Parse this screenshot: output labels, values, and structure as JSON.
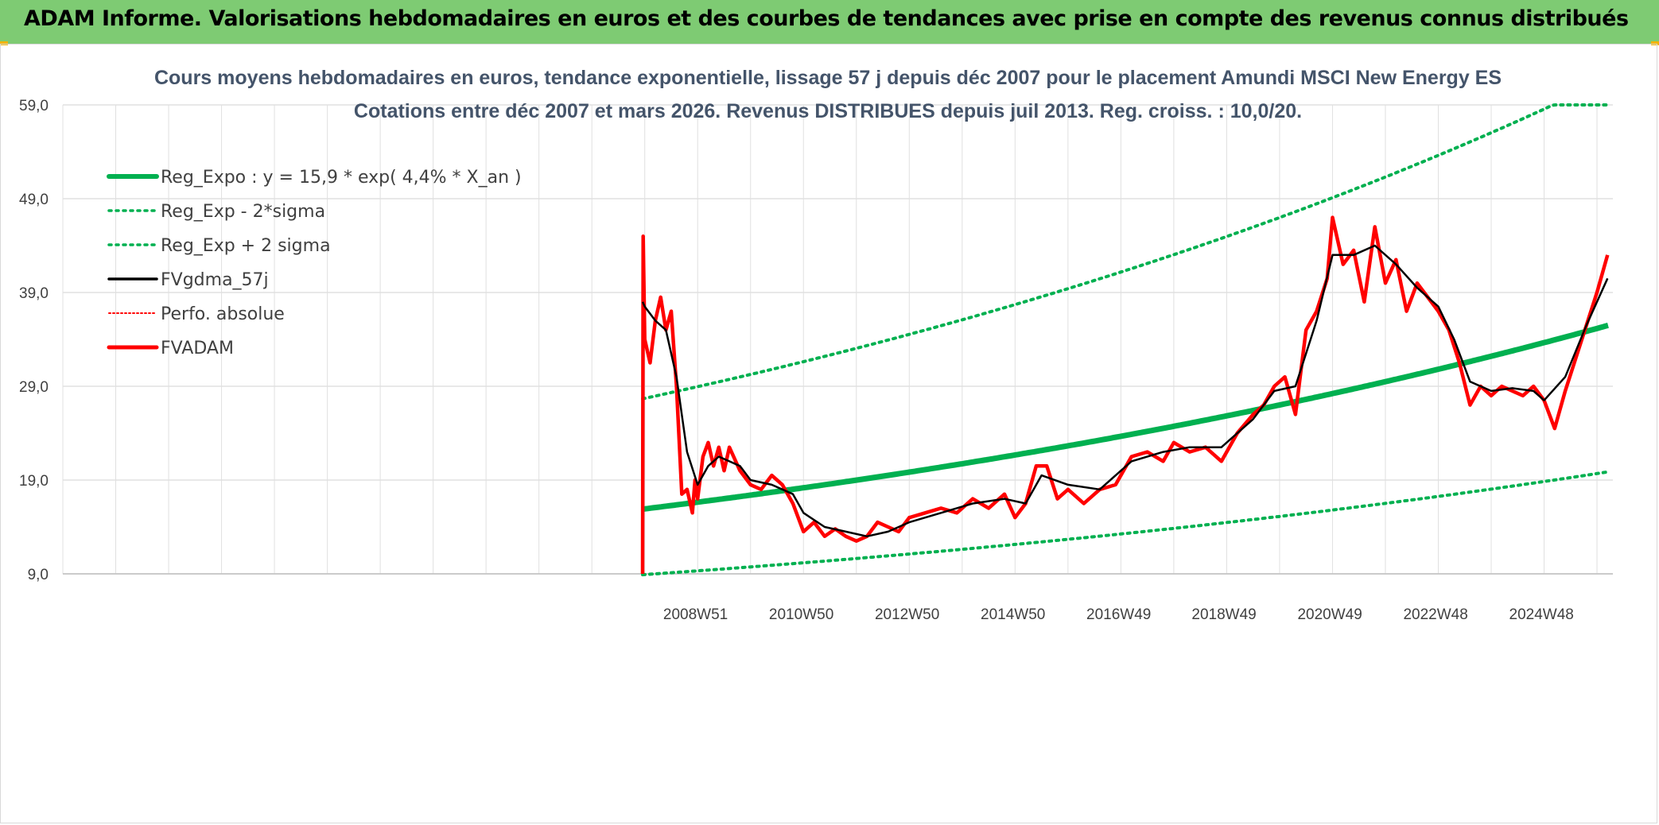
{
  "header": {
    "title": "ADAM Informe. Valorisations hebdomadaires en euros et des courbes de tendances avec prise en compte des revenus connus distribués"
  },
  "colors": {
    "banner": "#7ecb73",
    "reg_expo": "#00b050",
    "fvgdma": "#000000",
    "fvadam": "#ff0000",
    "grid": "#e0e0e0"
  },
  "chart_data": {
    "type": "line",
    "title": "Cours moyens hebdomadaires en euros, tendance exponentielle, lissage 57 j depuis déc 2007 pour le placement Amundi MSCI New Energy ES",
    "subtitle": "Cotations entre déc 2007 et mars 2026. Revenus DISTRIBUES depuis juil 2013. Reg. croiss. : 10,0/20.",
    "ylim": [
      9.0,
      59.0
    ],
    "y_ticks": [
      "59,0",
      "49,0",
      "39,0",
      "29,0",
      "19,0",
      "9,0"
    ],
    "x_ticks": [
      "2008W51",
      "2010W50",
      "2012W50",
      "2014W50",
      "2016W49",
      "2018W49",
      "2020W49",
      "2022W48",
      "2024W48"
    ],
    "x_tick_years": [
      2008.96,
      2010.96,
      2012.96,
      2014.96,
      2016.96,
      2018.95,
      2020.95,
      2022.95,
      2024.95
    ],
    "x_range": [
      1997.0,
      2026.3
    ],
    "legend": [
      "Reg_Expo : y = 15,9 * exp( 4,4% *  X_an )",
      "Reg_Exp - 2*sigma",
      "Reg_Exp + 2 sigma",
      "FVgdma_57j",
      "Perfo. absolue",
      "FVADAM"
    ],
    "legend_position": "top-left",
    "series": [
      {
        "name": "FVADAM",
        "x": [
          2007.96,
          2007.97,
          2008.0,
          2008.1,
          2008.2,
          2008.3,
          2008.4,
          2008.5,
          2008.6,
          2008.7,
          2008.8,
          2008.9,
          2008.95,
          2009.0,
          2009.1,
          2009.2,
          2009.3,
          2009.4,
          2009.5,
          2009.6,
          2009.8,
          2010.0,
          2010.2,
          2010.4,
          2010.6,
          2010.8,
          2011.0,
          2011.2,
          2011.4,
          2011.6,
          2011.8,
          2012.0,
          2012.2,
          2012.4,
          2012.6,
          2012.8,
          2013.0,
          2013.3,
          2013.6,
          2013.9,
          2014.2,
          2014.5,
          2014.8,
          2015.0,
          2015.2,
          2015.4,
          2015.6,
          2015.8,
          2016.0,
          2016.3,
          2016.6,
          2016.9,
          2017.2,
          2017.5,
          2017.8,
          2018.0,
          2018.3,
          2018.6,
          2018.9,
          2019.2,
          2019.5,
          2019.7,
          2019.9,
          2020.1,
          2020.3,
          2020.5,
          2020.7,
          2020.9,
          2021.0,
          2021.2,
          2021.4,
          2021.6,
          2021.8,
          2022.0,
          2022.2,
          2022.4,
          2022.6,
          2022.8,
          2023.0,
          2023.2,
          2023.4,
          2023.6,
          2023.8,
          2024.0,
          2024.2,
          2024.4,
          2024.6,
          2024.8,
          2025.0,
          2025.2,
          2025.4,
          2025.6,
          2025.8,
          2026.0,
          2026.2
        ],
        "values": [
          9.0,
          45.0,
          34.0,
          31.5,
          36.0,
          38.5,
          35.0,
          37.0,
          29.0,
          17.5,
          18.0,
          15.5,
          19.0,
          17.0,
          21.5,
          23.0,
          20.5,
          22.5,
          20.0,
          22.5,
          20.0,
          18.5,
          18.0,
          19.5,
          18.5,
          16.5,
          13.5,
          14.5,
          13.0,
          13.8,
          13.0,
          12.5,
          13.0,
          14.5,
          14.0,
          13.5,
          15.0,
          15.5,
          16.0,
          15.5,
          17.0,
          16.0,
          17.5,
          15.0,
          16.5,
          20.5,
          20.5,
          17.0,
          18.0,
          16.5,
          18.0,
          18.5,
          21.5,
          22.0,
          21.0,
          23.0,
          22.0,
          22.5,
          21.0,
          24.0,
          26.0,
          27.0,
          29.0,
          30.0,
          26.0,
          35.0,
          37.0,
          40.5,
          47.0,
          42.0,
          43.5,
          38.0,
          46.0,
          40.0,
          42.5,
          37.0,
          40.0,
          38.5,
          37.0,
          35.0,
          31.5,
          27.0,
          29.0,
          28.0,
          29.0,
          28.5,
          28.0,
          29.0,
          27.5,
          24.5,
          28.5,
          32.0,
          35.5,
          39.0,
          43.0
        ]
      },
      {
        "name": "FVgdma_57j",
        "x": [
          2007.96,
          2008.0,
          2008.2,
          2008.4,
          2008.6,
          2008.8,
          2009.0,
          2009.2,
          2009.4,
          2009.6,
          2009.8,
          2010.0,
          2010.4,
          2010.8,
          2011.0,
          2011.4,
          2011.8,
          2012.2,
          2012.6,
          2013.0,
          2013.6,
          2014.2,
          2014.8,
          2015.2,
          2015.5,
          2016.0,
          2016.6,
          2017.2,
          2017.8,
          2018.3,
          2018.9,
          2019.5,
          2019.9,
          2020.3,
          2020.7,
          2021.0,
          2021.4,
          2021.8,
          2022.2,
          2022.6,
          2023.0,
          2023.3,
          2023.6,
          2024.0,
          2024.4,
          2024.8,
          2025.0,
          2025.4,
          2025.8,
          2026.2
        ],
        "values": [
          38.0,
          37.5,
          36.0,
          35.0,
          30.0,
          22.0,
          18.5,
          20.5,
          21.5,
          21.0,
          20.5,
          19.0,
          18.5,
          17.5,
          15.5,
          14.0,
          13.5,
          13.0,
          13.5,
          14.5,
          15.5,
          16.5,
          17.0,
          16.5,
          19.5,
          18.5,
          18.0,
          21.0,
          22.0,
          22.5,
          22.5,
          25.5,
          28.5,
          29.0,
          36.0,
          43.0,
          43.0,
          44.0,
          42.0,
          39.5,
          37.5,
          34.0,
          29.5,
          28.5,
          28.8,
          28.5,
          27.5,
          30.0,
          35.5,
          40.5
        ]
      }
    ]
  }
}
